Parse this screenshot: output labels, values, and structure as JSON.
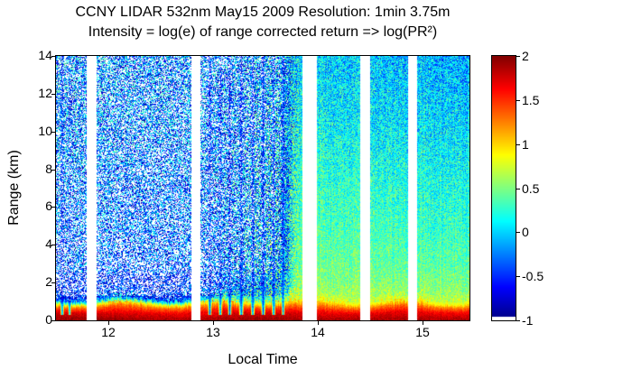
{
  "chart_data": {
    "type": "heatmap",
    "title": "CCNY LIDAR 532nm May15 2009 Resolution: 1min 3.75m",
    "subtitle": "Intensity = log(e) of range corrected return => log(PR²)",
    "xlabel": "Local Time",
    "ylabel": "Range (km)",
    "x_range": [
      11.5,
      15.45
    ],
    "y_range": [
      0,
      14
    ],
    "x_ticks": [
      "12",
      "13",
      "14",
      "15"
    ],
    "y_ticks": [
      "0",
      "2",
      "4",
      "6",
      "8",
      "10",
      "12",
      "14"
    ],
    "colorbar": {
      "ticks": [
        "2",
        "1.5",
        "1",
        "0.5",
        "0",
        "-0.5",
        "-1"
      ],
      "vmin": -1,
      "vmax": 2,
      "colormap": "jet",
      "below_min_color": "#ffffff"
    },
    "grid": {
      "comment_units": "values are log(PR2), ranges in km, times in local hours",
      "ranges": [
        0,
        0.4,
        0.7,
        0.9,
        1.1,
        1.4,
        2,
        3,
        5,
        7,
        9,
        11,
        14
      ],
      "times": [
        11.5,
        12.0,
        12.5,
        12.9,
        13.3,
        13.65,
        13.8,
        14.0,
        14.4,
        14.8,
        15.1,
        15.45
      ],
      "values": [
        [
          1.95,
          1.95,
          1.9,
          1.9,
          1.95,
          1.95,
          1.9,
          1.9,
          1.9,
          1.9,
          1.9,
          1.9
        ],
        [
          1.75,
          1.7,
          1.65,
          1.65,
          1.75,
          1.75,
          1.7,
          1.65,
          1.65,
          1.7,
          1.65,
          1.65
        ],
        [
          1.3,
          1.35,
          1.25,
          1.25,
          1.4,
          1.45,
          1.35,
          1.25,
          1.25,
          1.35,
          1.3,
          1.25
        ],
        [
          0.7,
          0.9,
          0.75,
          0.8,
          1.0,
          1.1,
          1.0,
          0.95,
          0.9,
          0.95,
          0.9,
          0.9
        ],
        [
          -0.3,
          0.0,
          -0.3,
          0.0,
          0.5,
          0.7,
          0.8,
          0.75,
          0.7,
          0.75,
          0.7,
          0.7
        ],
        [
          -0.9,
          -0.75,
          -0.9,
          -0.6,
          0.0,
          0.3,
          0.65,
          0.6,
          0.6,
          0.6,
          0.6,
          0.6
        ],
        [
          -1.0,
          -0.95,
          -1.0,
          -0.85,
          -0.4,
          -0.1,
          0.55,
          0.5,
          0.5,
          0.5,
          0.5,
          0.5
        ],
        [
          -0.9,
          -0.9,
          -0.95,
          -0.85,
          -0.55,
          -0.3,
          0.45,
          0.45,
          0.42,
          0.4,
          0.4,
          0.4
        ],
        [
          -0.8,
          -0.85,
          -0.85,
          -0.75,
          -0.55,
          -0.35,
          0.38,
          0.35,
          0.32,
          0.3,
          0.28,
          0.28
        ],
        [
          -0.75,
          -0.8,
          -0.85,
          -0.75,
          -0.55,
          -0.35,
          0.3,
          0.28,
          0.25,
          0.22,
          0.2,
          0.2
        ],
        [
          -0.7,
          -0.75,
          -0.8,
          -0.72,
          -0.6,
          -0.4,
          0.22,
          0.2,
          0.16,
          0.14,
          0.12,
          0.1
        ],
        [
          -0.62,
          -0.7,
          -0.72,
          -0.7,
          -0.6,
          -0.42,
          0.12,
          0.1,
          0.06,
          0.04,
          0.02,
          0.0
        ],
        [
          -0.6,
          -0.68,
          -0.7,
          -0.68,
          -0.6,
          -0.45,
          0.02,
          0.0,
          -0.04,
          -0.06,
          -0.1,
          -0.12
        ]
      ]
    },
    "gaps": [
      [
        11.79,
        11.89
      ],
      [
        12.79,
        12.88
      ],
      [
        13.855,
        13.99
      ],
      [
        14.41,
        14.5
      ],
      [
        14.86,
        14.95
      ]
    ],
    "streaks": [
      {
        "t": 11.56,
        "w": 0.018,
        "v": -0.5
      },
      {
        "t": 11.63,
        "w": 0.015,
        "v": -0.4
      },
      {
        "t": 12.97,
        "w": 0.02,
        "v": -0.45
      },
      {
        "t": 13.07,
        "w": 0.018,
        "v": -0.5
      },
      {
        "t": 13.16,
        "w": 0.02,
        "v": -0.55
      },
      {
        "t": 13.27,
        "w": 0.025,
        "v": -0.5
      },
      {
        "t": 13.38,
        "w": 0.02,
        "v": -0.55
      },
      {
        "t": 13.48,
        "w": 0.022,
        "v": -0.5
      },
      {
        "t": 13.58,
        "w": 0.02,
        "v": -0.45
      },
      {
        "t": 13.67,
        "w": 0.018,
        "v": -0.4
      }
    ],
    "noise": {
      "surface_amp": 0.1,
      "left_amp": 1.15,
      "right_amp_base": 0.2,
      "split_time": 13.7
    }
  }
}
